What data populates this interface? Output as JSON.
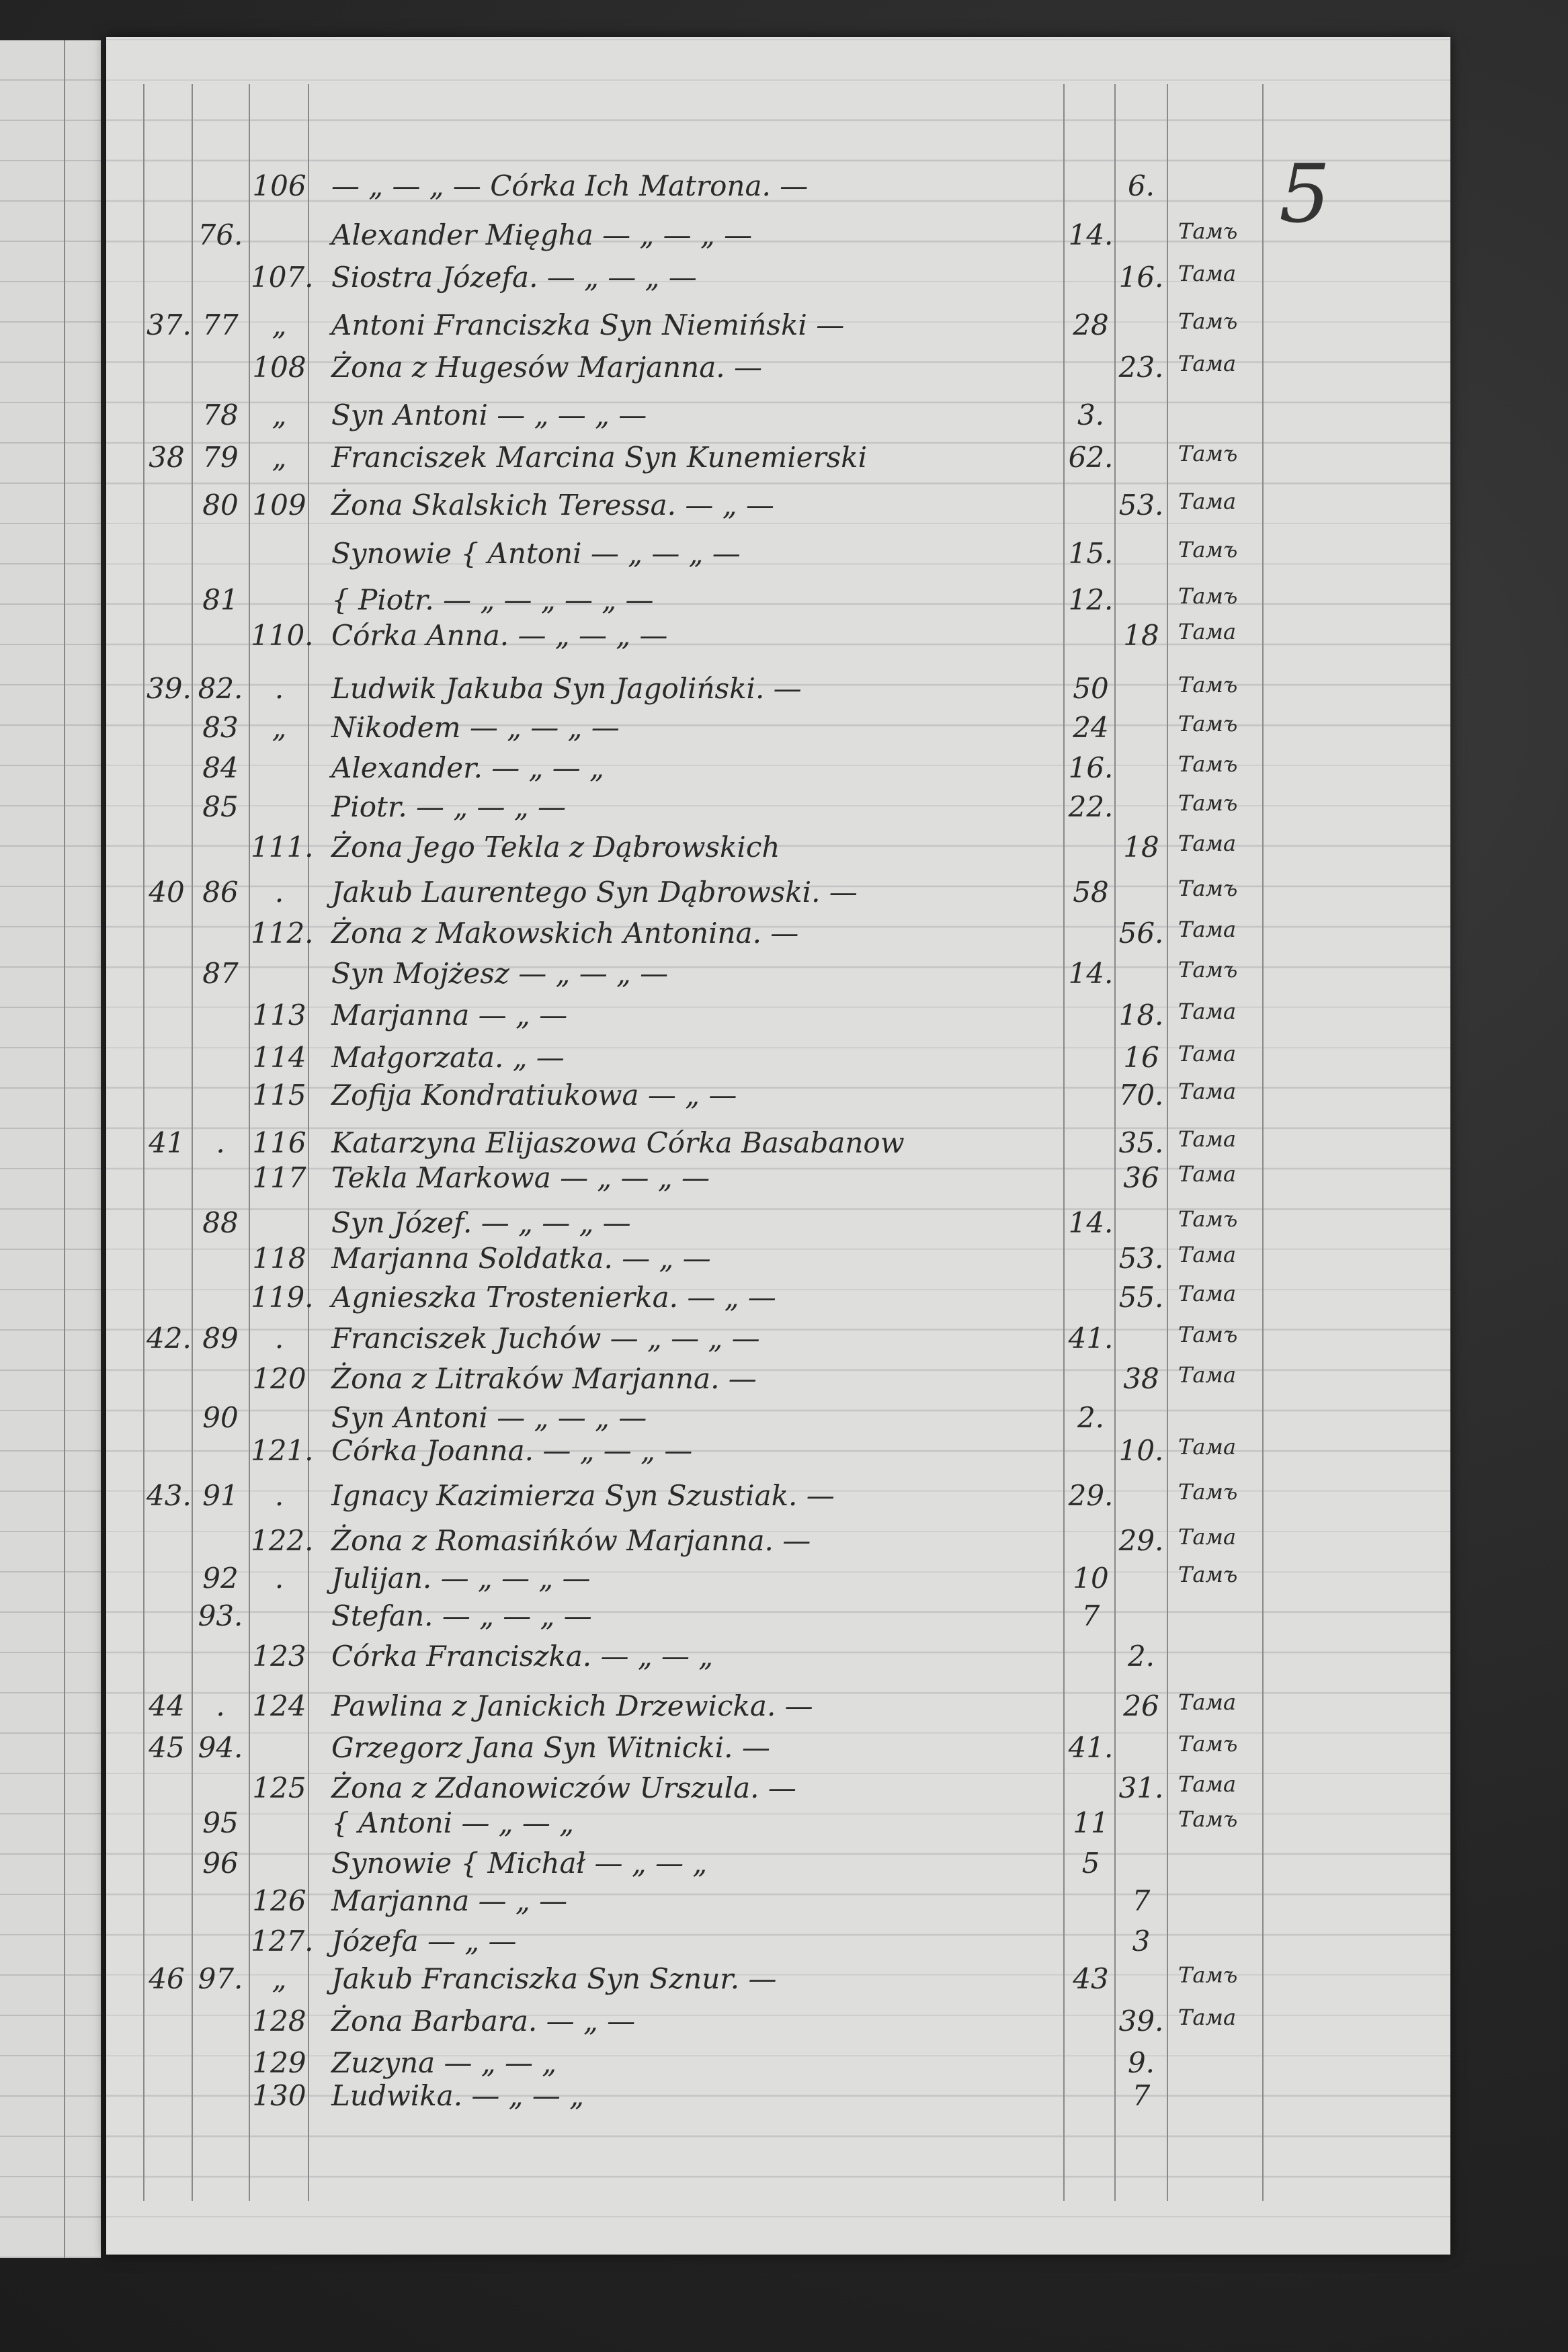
{
  "page_number": "5",
  "rows": [
    {
      "h": "",
      "m": "",
      "f": "106",
      "text": "— „ — „ — Córka Ich Matrona. —",
      "ma": "",
      "fa": "6.",
      "s": ""
    },
    {
      "h": "",
      "m": "76.",
      "f": "",
      "text": "Alexander Mięgha — „ — „ —",
      "ma": "14.",
      "fa": "",
      "s": "Тамъ"
    },
    {
      "h": "",
      "m": "",
      "f": "107.",
      "text": "Siostra Józefa. — „ — „ —",
      "ma": "",
      "fa": "16.",
      "s": "Тама"
    },
    {
      "h": "37.",
      "m": "77",
      "f": "„",
      "text": "Antoni Franciszka Syn Niemiński —",
      "ma": "28",
      "fa": "",
      "s": "Тамъ"
    },
    {
      "h": "",
      "m": "",
      "f": "108",
      "text": "Żona z Hugesów Marjanna. —",
      "ma": "",
      "fa": "23.",
      "s": "Тама"
    },
    {
      "h": "",
      "m": "78",
      "f": "„",
      "text": "Syn Antoni — „ — „ —",
      "ma": "3.",
      "fa": "",
      "s": ""
    },
    {
      "h": "38",
      "m": "79",
      "f": "„",
      "text": "Franciszek Marcina Syn Kunemierski",
      "ma": "62.",
      "fa": "",
      "s": "Тамъ"
    },
    {
      "h": "",
      "m": "80",
      "f": "109",
      "text": "Żona Skalskich Teressa. — „ —",
      "ma": "",
      "fa": "53.",
      "s": "Тама"
    },
    {
      "h": "",
      "m": "",
      "f": "",
      "text": "Synowie { Antoni — „ — „ —",
      "ma": "15.",
      "fa": "",
      "s": "Тамъ"
    },
    {
      "h": "",
      "m": "81",
      "f": "",
      "text": "           { Piotr. — „ — „ — „ —",
      "ma": "12.",
      "fa": "",
      "s": "Тамъ"
    },
    {
      "h": "",
      "m": "",
      "f": "110.",
      "text": "Córka   Anna. — „ — „ —",
      "ma": "",
      "fa": "18",
      "s": "Тама"
    },
    {
      "h": "39.",
      "m": "82.",
      "f": ".",
      "text": "Ludwik Jakuba Syn Jagoliński. —",
      "ma": "50",
      "fa": "",
      "s": "Тамъ"
    },
    {
      "h": "",
      "m": "83",
      "f": "„",
      "text": "                 Nikodem — „ — „ —",
      "ma": "24",
      "fa": "",
      "s": "Тамъ"
    },
    {
      "h": "",
      "m": "84",
      "f": "",
      "text": "                 Alexander. — „ — „",
      "ma": "16.",
      "fa": "",
      "s": "Тамъ"
    },
    {
      "h": "",
      "m": "85",
      "f": "",
      "text": "                 Piotr. — „ — „ —",
      "ma": "22.",
      "fa": "",
      "s": "Тамъ"
    },
    {
      "h": "",
      "m": "",
      "f": "111.",
      "text": "Żona Jego Tekla z Dąbrowskich",
      "ma": "",
      "fa": "18",
      "s": "Тама"
    },
    {
      "h": "40",
      "m": "86",
      "f": ".",
      "text": "Jakub Laurentego Syn Dąbrowski. —",
      "ma": "58",
      "fa": "",
      "s": "Тамъ"
    },
    {
      "h": "",
      "m": "",
      "f": "112.",
      "text": "Żona z Makowskich Antonina. —",
      "ma": "",
      "fa": "56.",
      "s": "Тама"
    },
    {
      "h": "",
      "m": "87",
      "f": "",
      "text": "       Syn Mojżesz — „ — „ —",
      "ma": "14.",
      "fa": "",
      "s": "Тамъ"
    },
    {
      "h": "",
      "m": "",
      "f": "113",
      "text": "                 Marjanna — „ —",
      "ma": "",
      "fa": "18.",
      "s": "Тама"
    },
    {
      "h": "",
      "m": "",
      "f": "114",
      "text": "                 Małgorzata. „ —",
      "ma": "",
      "fa": "16",
      "s": "Тама"
    },
    {
      "h": "",
      "m": "",
      "f": "115",
      "text": "Zofija Kondratiukowa — „ —",
      "ma": "",
      "fa": "70.",
      "s": "Тама"
    },
    {
      "h": "41",
      "m": ".",
      "f": "116",
      "text": "Katarzyna Elijaszowa Córka Basabanow",
      "ma": "",
      "fa": "35.",
      "s": "Тама"
    },
    {
      "h": "",
      "m": "",
      "f": "117",
      "text": "Tekla Markowa — „ — „ —",
      "ma": "",
      "fa": "36",
      "s": "Тама"
    },
    {
      "h": "",
      "m": "88",
      "f": "",
      "text": "       Syn Józef. — „ — „ —",
      "ma": "14.",
      "fa": "",
      "s": "Тамъ"
    },
    {
      "h": "",
      "m": "",
      "f": "118",
      "text": "Marjanna Soldatka. — „ —",
      "ma": "",
      "fa": "53.",
      "s": "Тама"
    },
    {
      "h": "",
      "m": "",
      "f": "119.",
      "text": "Agnieszka Trostenierka. — „ —",
      "ma": "",
      "fa": "55.",
      "s": "Тама"
    },
    {
      "h": "42.",
      "m": "89",
      "f": ".",
      "text": "Franciszek Juchów — „ — „ —",
      "ma": "41.",
      "fa": "",
      "s": "Тамъ"
    },
    {
      "h": "",
      "m": "",
      "f": "120",
      "text": "Żona z Litraków Marjanna. —",
      "ma": "",
      "fa": "38",
      "s": "Тама"
    },
    {
      "h": "",
      "m": "90",
      "f": "",
      "text": "       Syn Antoni — „ — „ —",
      "ma": "2.",
      "fa": "",
      "s": ""
    },
    {
      "h": "",
      "m": "",
      "f": "121.",
      "text": "Córka Joanna. — „ — „ —",
      "ma": "",
      "fa": "10.",
      "s": "Тама"
    },
    {
      "h": "43.",
      "m": "91",
      "f": ".",
      "text": "Ignacy Kazimierza Syn Szustiak. —",
      "ma": "29.",
      "fa": "",
      "s": "Тамъ"
    },
    {
      "h": "",
      "m": "",
      "f": "122.",
      "text": "Żona z Romasińków Marjanna. —",
      "ma": "",
      "fa": "29.",
      "s": "Тама"
    },
    {
      "h": "",
      "m": "92",
      "f": ".",
      "text": "              Julijan. — „ — „ —",
      "ma": "10",
      "fa": "",
      "s": "Тамъ"
    },
    {
      "h": "",
      "m": "93.",
      "f": "",
      "text": "              Stefan. — „ — „ —",
      "ma": "7",
      "fa": "",
      "s": ""
    },
    {
      "h": "",
      "m": "",
      "f": "123",
      "text": "    Córka Franciszka. — „ — „",
      "ma": "",
      "fa": "2.",
      "s": ""
    },
    {
      "h": "44",
      "m": ".",
      "f": "124",
      "text": "Pawlina z Janickich Drzewicka. —",
      "ma": "",
      "fa": "26",
      "s": "Тама"
    },
    {
      "h": "45",
      "m": "94.",
      "f": "",
      "text": "Grzegorz Jana Syn Witnicki. —",
      "ma": "41.",
      "fa": "",
      "s": "Тамъ"
    },
    {
      "h": "",
      "m": "",
      "f": "125",
      "text": "Żona z Zdanowiczów Urszula. —",
      "ma": "",
      "fa": "31.",
      "s": "Тама"
    },
    {
      "h": "",
      "m": "95",
      "f": "",
      "text": "                { Antoni — „ — „",
      "ma": "11",
      "fa": "",
      "s": "Тамъ"
    },
    {
      "h": "",
      "m": "96",
      "f": "",
      "text": "  Synowie { Michał — „ — „",
      "ma": "5",
      "fa": "",
      "s": ""
    },
    {
      "h": "",
      "m": "",
      "f": "126",
      "text": "                 Marjanna — „ —",
      "ma": "",
      "fa": "7",
      "s": ""
    },
    {
      "h": "",
      "m": "",
      "f": "127.",
      "text": "                 Józefa — „ —",
      "ma": "",
      "fa": "3",
      "s": ""
    },
    {
      "h": "46",
      "m": "97.",
      "f": "„",
      "text": "Jakub Franciszka Syn Sznur. —",
      "ma": "43",
      "fa": "",
      "s": "Тамъ"
    },
    {
      "h": "",
      "m": "",
      "f": "128",
      "text": "Żona   Barbara. — „ —",
      "ma": "",
      "fa": "39.",
      "s": "Тама"
    },
    {
      "h": "",
      "m": "",
      "f": "129",
      "text": "              Zuzyna — „ — „",
      "ma": "",
      "fa": "9.",
      "s": ""
    },
    {
      "h": "",
      "m": "",
      "f": "130",
      "text": "              Ludwika. — „ — „",
      "ma": "",
      "fa": "7",
      "s": ""
    }
  ]
}
